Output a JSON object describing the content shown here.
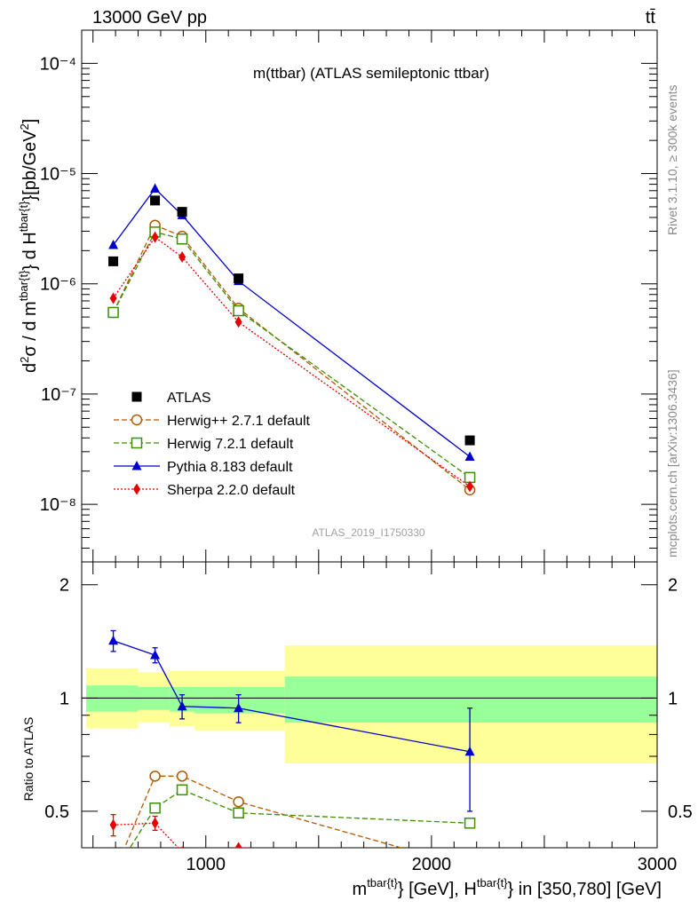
{
  "header": {
    "energy_label": "13000 GeV pp",
    "process_label": "tt̄",
    "plot_title": "m(ttbar) (ATLAS semileptonic ttbar)",
    "analysis_id": "ATLAS_2019_I1750330",
    "side_label_top": "Rivet 3.1.10, ≥ 300k events",
    "side_label_bottom": "mcplots.cern.ch [arXiv:1306.3436]"
  },
  "axes": {
    "y_label_top": "d²σ / d m^{tbar{t}} d H_T^{tbar{t}}[pb/GeV²]",
    "y_label_ratio": "Ratio to ATLAS",
    "x_label": "m^{tbar{t}} [GeV], H_T^{tbar{t}} in [350,780] [GeV]",
    "x_ticks": [
      "1000",
      "2000",
      "3000"
    ],
    "y_ticks_top": [
      "10⁻⁴",
      "10⁻⁵",
      "10⁻⁶",
      "10⁻⁷",
      "10⁻⁸"
    ],
    "y_ticks_ratio": [
      "2",
      "1",
      "0.5"
    ]
  },
  "legend": {
    "entries": [
      {
        "name": "ATLAS",
        "color": "#000000"
      },
      {
        "name": "Herwig++ 2.7.1 default",
        "color": "#b35900"
      },
      {
        "name": "Herwig 7.2.1 default",
        "color": "#3b8f00"
      },
      {
        "name": "Pythia 8.183 default",
        "color": "#0000cc"
      },
      {
        "name": "Sherpa 2.2.0 default",
        "color": "#e60000"
      }
    ]
  },
  "chart_data": {
    "type": "scatter",
    "title": "m(ttbar) (ATLAS semileptonic ttbar)",
    "xlim": [
      450,
      3000
    ],
    "ylim_top": [
      3e-09,
      0.0002
    ],
    "ylim_ratio": [
      0.4,
      2.3
    ],
    "x_log": false,
    "y_log": true,
    "x": [
      590,
      775,
      895,
      1145,
      2170
    ],
    "data": {
      "name": "ATLAS",
      "values": [
        1.6e-06,
        5.7e-06,
        4.5e-06,
        1.12e-06,
        3.8e-08
      ]
    },
    "bands": {
      "edges": [
        450,
        700,
        850,
        950,
        1350,
        3000
      ],
      "bin_edges_actual": [
        [
          470,
          700
        ],
        [
          700,
          840
        ],
        [
          840,
          950
        ],
        [
          950,
          1350
        ],
        [
          1350,
          3000
        ]
      ],
      "stat_low": [
        0.92,
        0.93,
        0.92,
        0.91,
        0.86
      ],
      "stat_high": [
        1.08,
        1.07,
        1.07,
        1.07,
        1.14
      ],
      "total_low": [
        0.83,
        0.86,
        0.84,
        0.82,
        0.67
      ],
      "total_high": [
        1.2,
        1.17,
        1.18,
        1.18,
        1.38
      ]
    },
    "series": [
      {
        "name": "Herwig++ 2.7.1 default",
        "color": "#b35900",
        "marker": "open-circle",
        "dash": "dashed",
        "values": [
          5.5e-07,
          3.4e-06,
          2.7e-06,
          6e-07,
          1.35e-08
        ],
        "ratio": [
          0.34,
          0.62,
          0.62,
          0.53,
          0.355
        ]
      },
      {
        "name": "Herwig 7.2.1 default",
        "color": "#3b8f00",
        "marker": "open-square",
        "dash": "dashed",
        "values": [
          5.5e-07,
          2.95e-06,
          2.55e-06,
          5.7e-07,
          1.75e-08
        ],
        "ratio": [
          0.34,
          0.51,
          0.57,
          0.495,
          0.465
        ]
      },
      {
        "name": "Pythia 8.183 default",
        "color": "#0000cc",
        "marker": "filled-triangle",
        "dash": "solid",
        "values": [
          2.25e-06,
          7.3e-06,
          4.2e-06,
          1.06e-06,
          2.7e-08
        ],
        "ratio": [
          1.42,
          1.3,
          0.95,
          0.94,
          0.72
        ],
        "ratio_err": [
          0.09,
          0.06,
          0.07,
          0.08,
          0.22
        ]
      },
      {
        "name": "Sherpa 2.2.0 default",
        "color": "#e60000",
        "marker": "filled-diamond",
        "dash": "dotted",
        "values": [
          7.4e-07,
          2.65e-06,
          1.75e-06,
          4.5e-07,
          1.45e-08
        ],
        "ratio": [
          0.46,
          0.465,
          0.39,
          0.4,
          0.38
        ],
        "ratio_err": [
          0.03,
          0.02,
          0,
          0,
          0
        ]
      }
    ]
  }
}
